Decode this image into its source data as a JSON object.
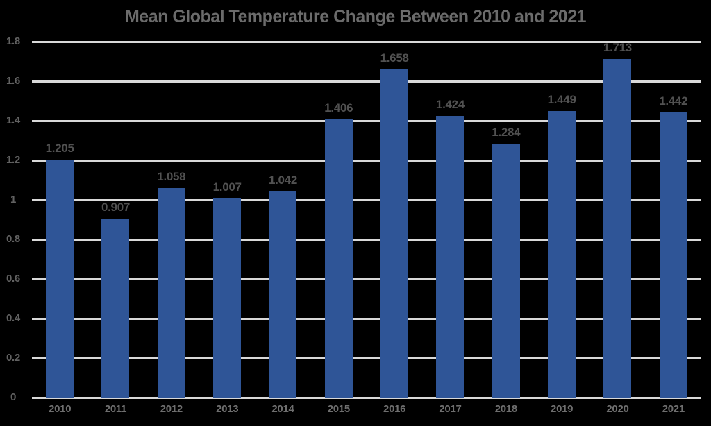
{
  "chart_data": {
    "type": "bar",
    "title": "Mean Global Temperature Change Between 2010 and 2021",
    "categories": [
      "2010",
      "2011",
      "2012",
      "2013",
      "2014",
      "2015",
      "2016",
      "2017",
      "2018",
      "2019",
      "2020",
      "2021"
    ],
    "values": [
      1.205,
      0.907,
      1.058,
      1.007,
      1.042,
      1.406,
      1.658,
      1.424,
      1.284,
      1.449,
      1.713,
      1.442
    ],
    "value_labels": [
      "1.205",
      "0.907",
      "1.058",
      "1.007",
      "1.042",
      "1.406",
      "1.658",
      "1.424",
      "1.284",
      "1.449",
      "1.713",
      "1.442"
    ],
    "xlabel": "",
    "ylabel": "",
    "ylim": [
      0,
      1.8
    ],
    "yticks": [
      {
        "value": 0,
        "label": "0"
      },
      {
        "value": 0.2,
        "label": "0.2"
      },
      {
        "value": 0.4,
        "label": "0.4"
      },
      {
        "value": 0.6,
        "label": "0.6"
      },
      {
        "value": 0.8,
        "label": "0.8"
      },
      {
        "value": 1,
        "label": "1"
      },
      {
        "value": 1.2,
        "label": "1.2"
      },
      {
        "value": 1.4,
        "label": "1.4"
      },
      {
        "value": 1.6,
        "label": "1.6"
      },
      {
        "value": 1.8,
        "label": "1.8"
      }
    ],
    "grid": true,
    "legend": null
  },
  "colors": {
    "background": "#000000",
    "bar": "#2F5597",
    "gridline": "#D9D9D9",
    "title_text": "#6B6B6B",
    "axis_tick_text": "#616161",
    "x_label_text": "#6E6E6E",
    "value_label_text": "#515151"
  }
}
